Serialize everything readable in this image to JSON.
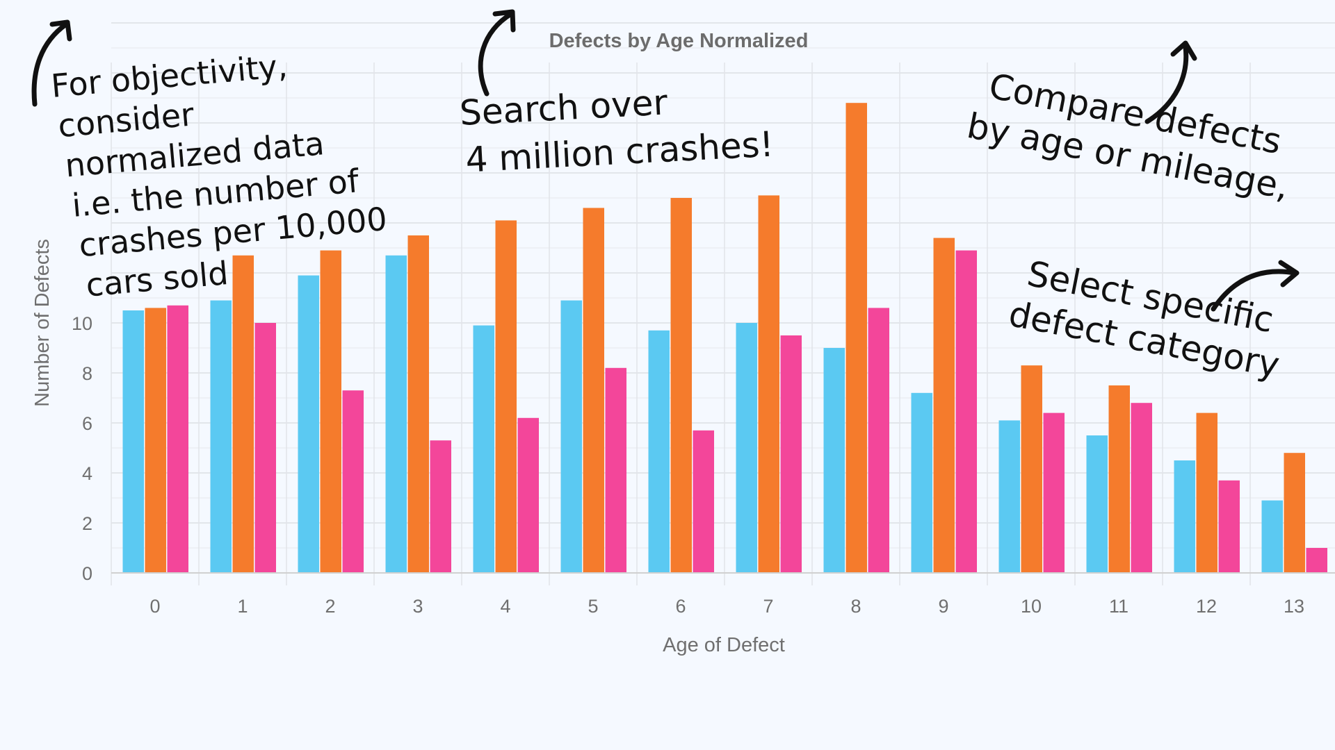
{
  "chart_data": {
    "type": "bar",
    "title": "Defects by Age Normalized",
    "xlabel": "Age of Defect",
    "ylabel": "Number of Defects",
    "categories": [
      "0",
      "1",
      "2",
      "3",
      "4",
      "5",
      "6",
      "7",
      "8",
      "9",
      "10",
      "11",
      "12",
      "13"
    ],
    "series": [
      {
        "color": "#5bc9f2",
        "values": [
          10.5,
          10.9,
          11.9,
          12.7,
          9.9,
          10.9,
          9.7,
          10.0,
          9.0,
          7.2,
          6.1,
          5.5,
          4.5,
          2.9
        ]
      },
      {
        "color": "#f57b2c",
        "values": [
          10.6,
          12.7,
          12.9,
          13.5,
          14.1,
          14.6,
          15.0,
          15.1,
          18.8,
          13.4,
          8.3,
          7.5,
          6.4,
          4.8
        ]
      },
      {
        "color": "#f3469a",
        "values": [
          10.7,
          10.0,
          7.3,
          5.3,
          6.2,
          8.2,
          5.7,
          9.5,
          10.6,
          12.9,
          6.4,
          6.8,
          3.7,
          1.0
        ]
      }
    ],
    "y_ticks": [
      0,
      2,
      4,
      6,
      8,
      10
    ],
    "ylim": [
      0,
      20
    ],
    "grid": true,
    "annotations": [
      {
        "lines": [
          "For objectivity,",
          "consider",
          "normalized data",
          "i.e. the number of",
          "crashes per 10,000",
          "cars sold"
        ]
      },
      {
        "lines": [
          "Search over",
          "4 million crashes!"
        ]
      },
      {
        "lines": [
          "Compare defects",
          "by age or mileage,"
        ]
      },
      {
        "lines": [
          "Select specific",
          "defect category"
        ]
      }
    ]
  }
}
